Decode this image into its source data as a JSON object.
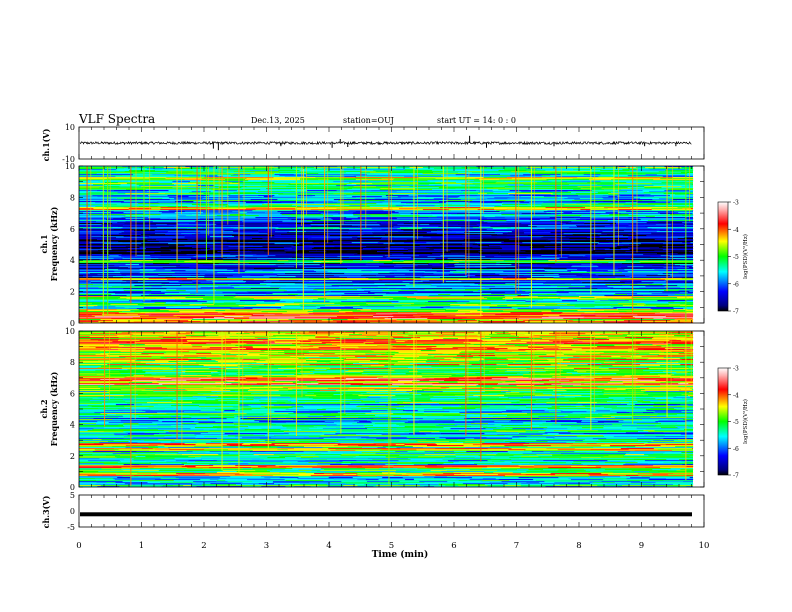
{
  "header": {
    "title": "VLF Spectra",
    "date": "Dec.13, 2025",
    "station": "station=OUJ",
    "start": "start UT =  14: 0  : 0"
  },
  "chart_data": [
    {
      "type": "line",
      "id": "ch1-waveform",
      "ylabel": "ch.1(V)",
      "ylim": [
        -10,
        10
      ],
      "y_ticks": [
        "10",
        "-10"
      ],
      "series_level": 0,
      "series_amplitude": 0.8,
      "spikes": [
        {
          "x": 2.15,
          "dy": -3.5
        },
        {
          "x": 2.23,
          "dy": -4.5
        },
        {
          "x": 3.23,
          "dy": -2.0
        },
        {
          "x": 4.05,
          "dy": -3.0
        },
        {
          "x": 4.18,
          "dy": 2.5
        },
        {
          "x": 4.3,
          "dy": -2.5
        },
        {
          "x": 6.25,
          "dy": 4.5
        },
        {
          "x": 6.52,
          "dy": -3.0
        },
        {
          "x": 7.6,
          "dy": -2.0
        },
        {
          "x": 9.05,
          "dy": -2.0
        },
        {
          "x": 9.55,
          "dy": -2.0
        }
      ]
    },
    {
      "type": "heatmap",
      "id": "ch1-spectrogram",
      "ylabel": "ch.1",
      "ylabel2": "Frequency (kHz)",
      "xlim": [
        0,
        9.82
      ],
      "ylim": [
        0,
        10
      ],
      "y_ticks": [
        "0",
        "2",
        "4",
        "6",
        "8",
        "10"
      ],
      "colorbar": {
        "label": "log(PSD)(V²/Hz)",
        "range": [
          -7,
          -3
        ],
        "ticks": [
          "-3",
          "-4",
          "-5",
          "-6",
          "-7"
        ]
      },
      "profile": [
        {
          "f": 0.0,
          "v": -4.6
        },
        {
          "f": 0.3,
          "v": -4.0
        },
        {
          "f": 0.6,
          "v": -4.3
        },
        {
          "f": 1.0,
          "v": -5.6
        },
        {
          "f": 1.5,
          "v": -5.3
        },
        {
          "f": 2.0,
          "v": -5.8
        },
        {
          "f": 3.0,
          "v": -6.0
        },
        {
          "f": 3.5,
          "v": -6.2
        },
        {
          "f": 4.0,
          "v": -6.5
        },
        {
          "f": 4.8,
          "v": -6.9
        },
        {
          "f": 5.5,
          "v": -6.4
        },
        {
          "f": 6.5,
          "v": -6.0
        },
        {
          "f": 7.5,
          "v": -5.7
        },
        {
          "f": 8.5,
          "v": -5.4
        },
        {
          "f": 10.0,
          "v": -5.2
        }
      ],
      "lines": [
        {
          "f": 0.35,
          "v": -3.6
        },
        {
          "f": 0.55,
          "v": -3.9
        },
        {
          "f": 1.2,
          "v": -4.9
        },
        {
          "f": 1.6,
          "v": -4.7
        },
        {
          "f": 2.8,
          "v": -4.5
        },
        {
          "f": 3.9,
          "v": -5.0
        },
        {
          "f": 7.3,
          "v": -4.2
        },
        {
          "f": 9.2,
          "v": -4.6
        }
      ],
      "sferics": [
        0.12,
        0.38,
        0.45,
        0.82,
        1.03,
        1.56,
        1.88,
        2.03,
        2.15,
        2.28,
        2.55,
        3.02,
        3.47,
        3.58,
        3.92,
        4.18,
        4.5,
        4.95,
        5.35,
        5.82,
        6.18,
        6.42,
        6.98,
        7.23,
        7.62,
        8.18,
        8.55,
        8.85,
        9.4,
        9.7
      ]
    },
    {
      "type": "heatmap",
      "id": "ch2-spectrogram",
      "ylabel": "ch.2",
      "ylabel2": "Frequency (kHz)",
      "xlim": [
        0,
        9.82
      ],
      "ylim": [
        0,
        10
      ],
      "y_ticks": [
        "0",
        "2",
        "4",
        "6",
        "8",
        "10"
      ],
      "colorbar": {
        "label": "log(PSD)(V²/Hz)",
        "range": [
          -7,
          -3
        ],
        "ticks": [
          "-3",
          "-4",
          "-5",
          "-6",
          "-7"
        ]
      },
      "profile": [
        {
          "f": 0.0,
          "v": -5.5
        },
        {
          "f": 1.0,
          "v": -5.3
        },
        {
          "f": 2.0,
          "v": -5.2
        },
        {
          "f": 3.0,
          "v": -5.4
        },
        {
          "f": 4.0,
          "v": -5.5
        },
        {
          "f": 5.0,
          "v": -5.5
        },
        {
          "f": 6.0,
          "v": -5.1
        },
        {
          "f": 7.0,
          "v": -4.8
        },
        {
          "f": 8.0,
          "v": -4.6
        },
        {
          "f": 9.0,
          "v": -4.4
        },
        {
          "f": 10.0,
          "v": -4.3
        }
      ],
      "lines": [
        {
          "f": 0.8,
          "v": -4.2
        },
        {
          "f": 1.3,
          "v": -4.0
        },
        {
          "f": 2.4,
          "v": -4.3
        },
        {
          "f": 2.7,
          "v": -4.1
        },
        {
          "f": 6.6,
          "v": -3.6
        },
        {
          "f": 6.9,
          "v": -3.7
        },
        {
          "f": 9.3,
          "v": -3.9
        }
      ],
      "sferics": [
        0.4,
        0.82,
        1.56,
        2.28,
        2.55,
        3.02,
        3.47,
        4.18,
        4.95,
        5.35,
        6.18,
        6.42,
        7.23,
        7.62,
        8.18,
        8.85,
        9.4,
        9.7
      ]
    },
    {
      "type": "line",
      "id": "ch3-waveform",
      "ylabel": "ch.3(V)",
      "ylim": [
        -5,
        5
      ],
      "y_ticks": [
        "5",
        "0",
        "-5"
      ],
      "series_level": -1.0,
      "series_amplitude": 0.15
    }
  ],
  "xaxis": {
    "xlabel": "Time (min)",
    "xlim": [
      0,
      10
    ],
    "x_ticks": [
      "0",
      "1",
      "2",
      "3",
      "4",
      "5",
      "6",
      "7",
      "8",
      "9",
      "10"
    ]
  }
}
